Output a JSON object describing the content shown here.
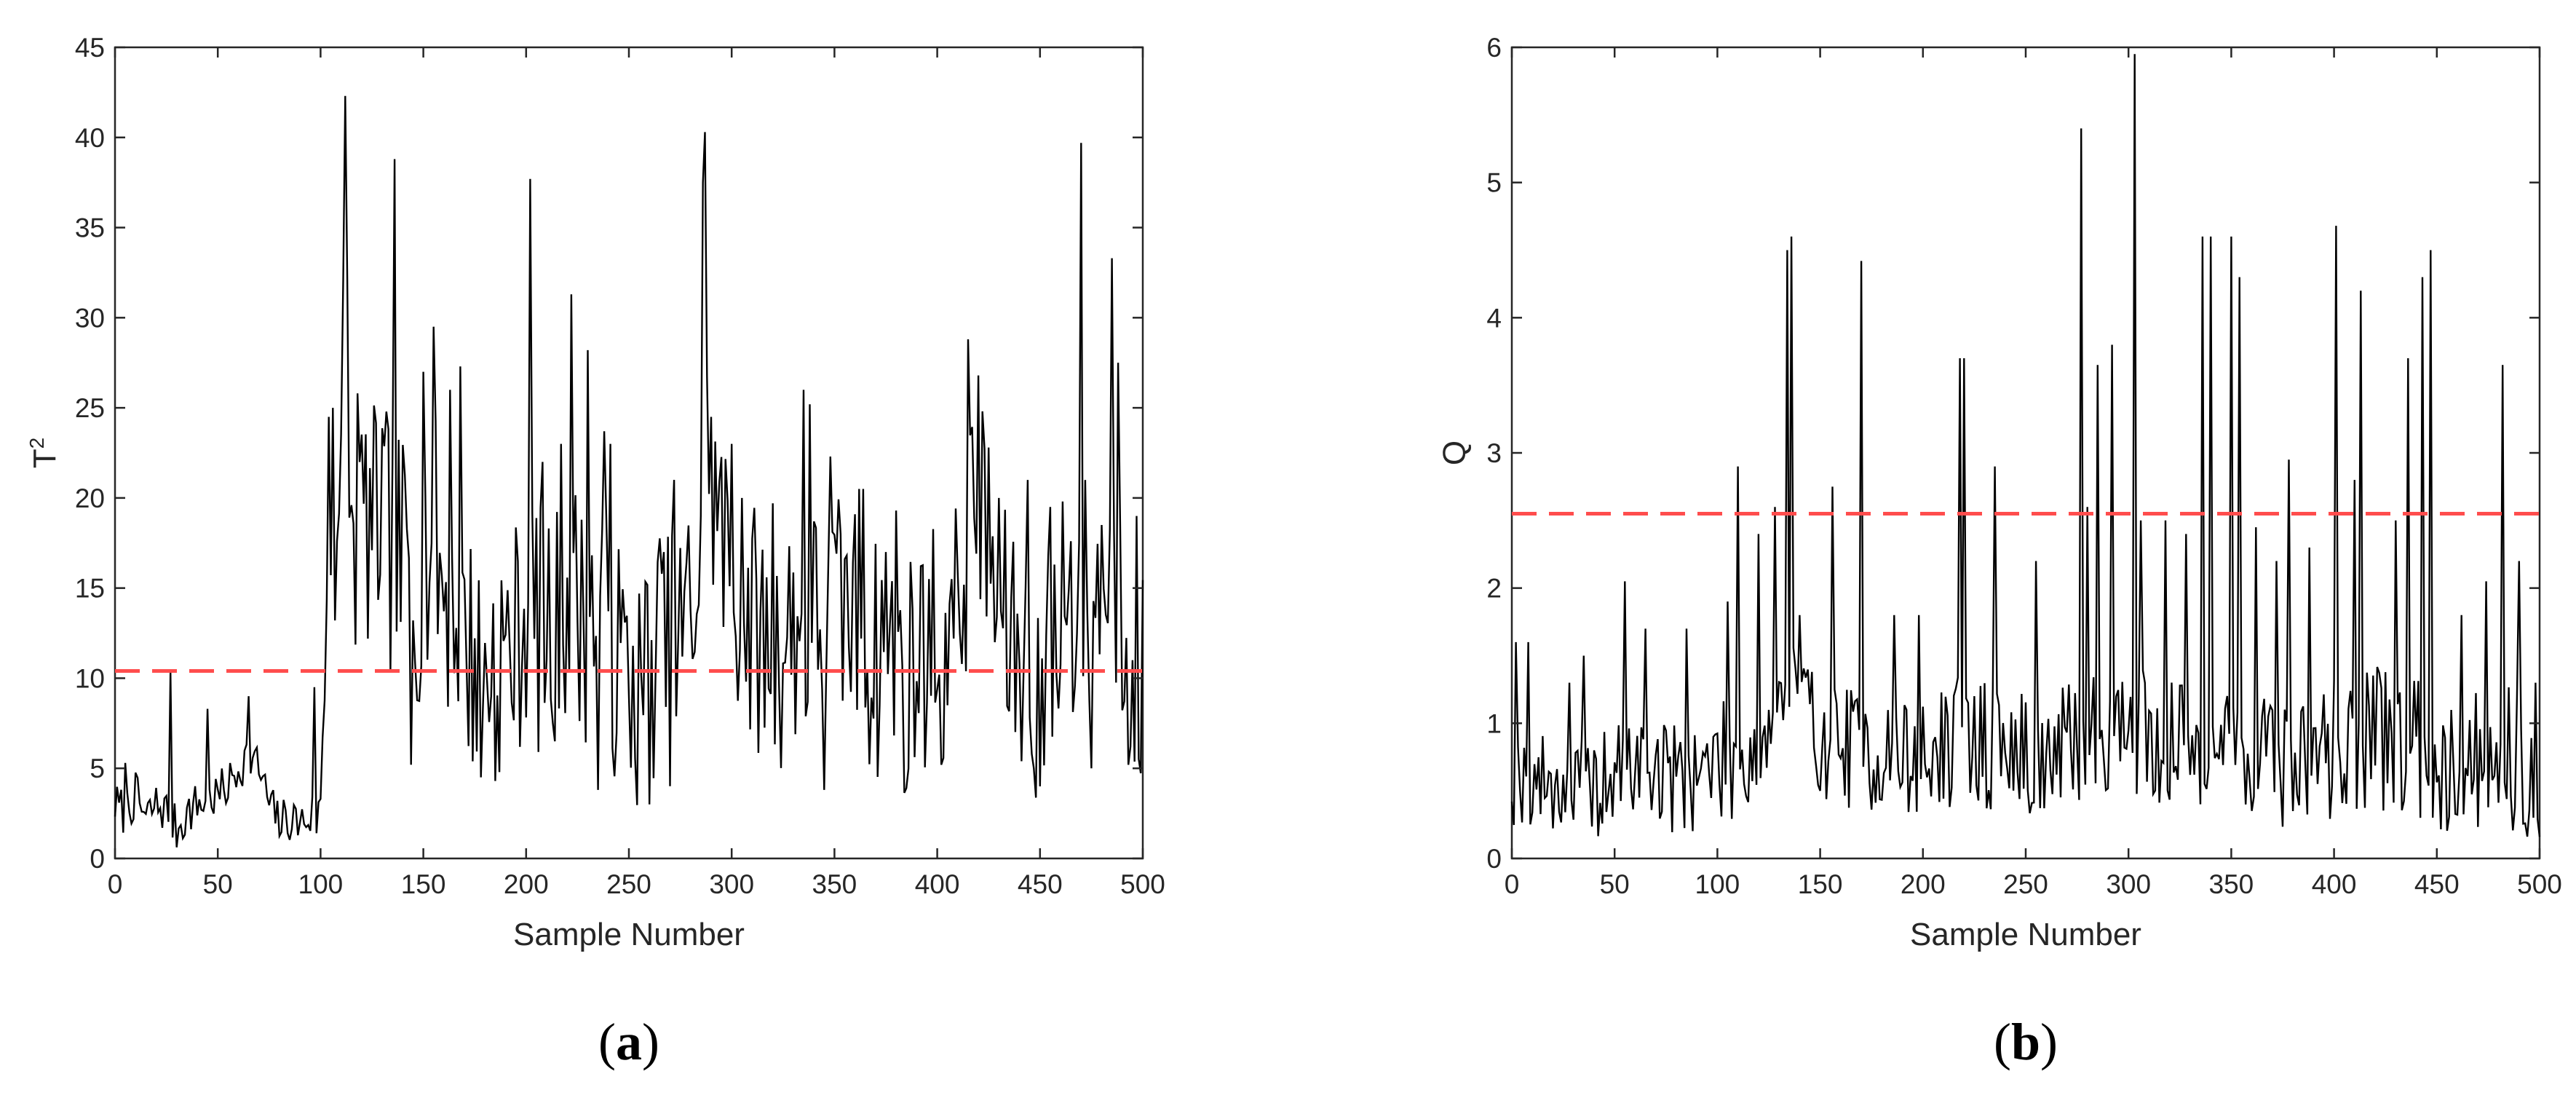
{
  "chart_data": [
    {
      "type": "line",
      "panel_caption": "(a)",
      "caption_parts": [
        "(",
        "a",
        ")"
      ],
      "xlabel": "Sample Number",
      "ylabel": "T",
      "ylabel_sup": "2",
      "xlim": [
        0,
        500
      ],
      "ylim": [
        0,
        45
      ],
      "xticks": [
        0,
        50,
        100,
        150,
        200,
        250,
        300,
        350,
        400,
        450,
        500
      ],
      "yticks": [
        0,
        5,
        10,
        15,
        20,
        25,
        30,
        35,
        40,
        45
      ],
      "grid": false,
      "colors": {
        "series": "#000000",
        "threshold": "#ff4d4d"
      },
      "threshold": {
        "value": 10.4,
        "style": "dashed"
      },
      "series": [
        {
          "anchors": [
            [
              0,
              3
            ],
            [
              5,
              2.5
            ],
            [
              10,
              3.5
            ],
            [
              15,
              2.2
            ],
            [
              20,
              3
            ],
            [
              25,
              2.6
            ],
            [
              30,
              1.6
            ],
            [
              35,
              2.5
            ],
            [
              40,
              3
            ],
            [
              45,
              3.2
            ],
            [
              50,
              3.5
            ],
            [
              55,
              4
            ],
            [
              60,
              5
            ],
            [
              65,
              5.8
            ],
            [
              70,
              5
            ],
            [
              75,
              3
            ],
            [
              80,
              2
            ],
            [
              85,
              2.2
            ],
            [
              90,
              2
            ],
            [
              95,
              2.3
            ],
            [
              100,
              2.5
            ],
            [
              102,
              12
            ],
            [
              105,
              18
            ],
            [
              110,
              20
            ],
            [
              112,
              34
            ],
            [
              115,
              17
            ],
            [
              120,
              19
            ],
            [
              125,
              18
            ],
            [
              130,
              19
            ],
            [
              136,
              16
            ],
            [
              140,
              17
            ],
            [
              145,
              15
            ],
            [
              150,
              16
            ],
            [
              155,
              18
            ],
            [
              160,
              15
            ],
            [
              165,
              14
            ],
            [
              170,
              12
            ],
            [
              175,
              11
            ],
            [
              180,
              10
            ],
            [
              185,
              12
            ],
            [
              190,
              11
            ],
            [
              195,
              12
            ],
            [
              200,
              14
            ],
            [
              205,
              13
            ],
            [
              210,
              12
            ],
            [
              215,
              13
            ],
            [
              220,
              15
            ],
            [
              225,
              14
            ],
            [
              230,
              13
            ],
            [
              235,
              14
            ],
            [
              240,
              12
            ],
            [
              245,
              11
            ],
            [
              250,
              10
            ],
            [
              255,
              9
            ],
            [
              260,
              11
            ],
            [
              265,
              12
            ],
            [
              270,
              11
            ],
            [
              275,
              12
            ],
            [
              280,
              14
            ],
            [
              285,
              16
            ],
            [
              288,
              22
            ],
            [
              292,
              20
            ],
            [
              295,
              18
            ],
            [
              300,
              15
            ],
            [
              305,
              14
            ],
            [
              310,
              13
            ],
            [
              315,
              12
            ],
            [
              320,
              11
            ],
            [
              325,
              12
            ],
            [
              330,
              13
            ],
            [
              335,
              12
            ],
            [
              340,
              13
            ],
            [
              345,
              14
            ],
            [
              350,
              13
            ],
            [
              355,
              14
            ],
            [
              360,
              13
            ],
            [
              365,
              12
            ],
            [
              370,
              11
            ],
            [
              375,
              12
            ],
            [
              380,
              11
            ],
            [
              385,
              10
            ],
            [
              390,
              11
            ],
            [
              395,
              12
            ],
            [
              400,
              12
            ],
            [
              405,
              12
            ],
            [
              410,
              13
            ],
            [
              415,
              18
            ],
            [
              420,
              20
            ],
            [
              425,
              16
            ],
            [
              430,
              13
            ],
            [
              435,
              12
            ],
            [
              440,
              11
            ],
            [
              445,
              10
            ],
            [
              450,
              10
            ],
            [
              455,
              11
            ],
            [
              460,
              12
            ],
            [
              465,
              13
            ],
            [
              470,
              15
            ],
            [
              475,
              14
            ],
            [
              480,
              15
            ],
            [
              485,
              16
            ],
            [
              490,
              14
            ],
            [
              495,
              12
            ],
            [
              500,
              10
            ]
          ],
          "amplitude": [
            [
              0,
              1.3
            ],
            [
              95,
              1.3
            ],
            [
              100,
              2
            ],
            [
              102,
              7
            ],
            [
              500,
              7
            ]
          ],
          "spikes": [
            [
              5,
              5.3
            ],
            [
              27,
              10.4
            ],
            [
              45,
              8.3
            ],
            [
              65,
              9
            ],
            [
              97,
              9.5
            ],
            [
              104,
              24.5
            ],
            [
              106,
              25
            ],
            [
              112,
              42.3
            ],
            [
              118,
              25.8
            ],
            [
              136,
              38.8
            ],
            [
              144,
              5.2
            ],
            [
              150,
              27
            ],
            [
              155,
              29.5
            ],
            [
              163,
              26
            ],
            [
              168,
              27.3
            ],
            [
              178,
              4.5
            ],
            [
              185,
              4.3
            ],
            [
              202,
              37.7
            ],
            [
              208,
              22
            ],
            [
              214,
              6.5
            ],
            [
              217,
              23
            ],
            [
              222,
              31.3
            ],
            [
              230,
              28.2
            ],
            [
              235,
              3.8
            ],
            [
              238,
              23.7
            ],
            [
              241,
              23
            ],
            [
              250,
              9
            ],
            [
              260,
              3
            ],
            [
              267,
              17
            ],
            [
              272,
              21
            ],
            [
              286,
              37.5
            ],
            [
              287,
              40.3
            ],
            [
              290,
              24.5
            ],
            [
              300,
              23
            ],
            [
              305,
              20
            ],
            [
              320,
              19.7
            ],
            [
              335,
              26
            ],
            [
              338,
              25.2
            ],
            [
              345,
              3.8
            ],
            [
              348,
              22.3
            ],
            [
              353,
              18
            ],
            [
              362,
              20.5
            ],
            [
              364,
              20.5
            ],
            [
              375,
              17
            ],
            [
              380,
              19.3
            ],
            [
              385,
              3.9
            ],
            [
              396,
              15.5
            ],
            [
              402,
              5.2
            ],
            [
              405,
              8.5
            ],
            [
              407,
              15.5
            ],
            [
              410,
              15.8
            ],
            [
              415,
              28.8
            ],
            [
              420,
              26.8
            ],
            [
              425,
              22.8
            ],
            [
              430,
              20
            ],
            [
              444,
              21
            ],
            [
              447,
              5
            ],
            [
              450,
              4
            ],
            [
              455,
              19.5
            ],
            [
              461,
              19.8
            ],
            [
              465,
              17.6
            ],
            [
              470,
              39.7
            ],
            [
              475,
              5
            ],
            [
              480,
              18.5
            ],
            [
              485,
              33.3
            ],
            [
              488,
              27.5
            ],
            [
              493,
              5.2
            ],
            [
              495,
              11
            ],
            [
              497,
              19
            ]
          ],
          "seed": 7
        }
      ]
    },
    {
      "type": "line",
      "panel_caption": "(b)",
      "caption_parts": [
        "(",
        "b",
        ")"
      ],
      "xlabel": "Sample Number",
      "ylabel": "Q",
      "xlim": [
        0,
        500
      ],
      "ylim": [
        0,
        6
      ],
      "xticks": [
        0,
        50,
        100,
        150,
        200,
        250,
        300,
        350,
        400,
        450,
        500
      ],
      "yticks": [
        0,
        1,
        2,
        3,
        4,
        5,
        6
      ],
      "grid": false,
      "colors": {
        "series": "#000000",
        "threshold": "#ff4d4d"
      },
      "threshold": {
        "value": 2.55,
        "style": "dashed"
      },
      "series": [
        {
          "anchors": [
            [
              0,
              0.6
            ],
            [
              20,
              0.55
            ],
            [
              40,
              0.5
            ],
            [
              60,
              0.7
            ],
            [
              80,
              0.6
            ],
            [
              100,
              0.7
            ],
            [
              120,
              0.8
            ],
            [
              135,
              1.3
            ],
            [
              150,
              0.9
            ],
            [
              170,
              0.8
            ],
            [
              200,
              0.7
            ],
            [
              220,
              0.9
            ],
            [
              240,
              0.8
            ],
            [
              260,
              0.7
            ],
            [
              280,
              0.9
            ],
            [
              300,
              1
            ],
            [
              320,
              0.8
            ],
            [
              340,
              0.9
            ],
            [
              360,
              0.8
            ],
            [
              380,
              0.7
            ],
            [
              400,
              0.8
            ],
            [
              420,
              0.9
            ],
            [
              440,
              0.8
            ],
            [
              460,
              0.7
            ],
            [
              480,
              0.8
            ],
            [
              500,
              0.6
            ]
          ],
          "amplitude": [
            [
              0,
              0.35
            ],
            [
              100,
              0.45
            ],
            [
              500,
              0.55
            ]
          ],
          "spikes": [
            [
              2,
              1.6
            ],
            [
              8,
              1.6
            ],
            [
              28,
              1.3
            ],
            [
              35,
              1.5
            ],
            [
              55,
              2.05
            ],
            [
              65,
              1.7
            ],
            [
              85,
              1.7
            ],
            [
              105,
              1.9
            ],
            [
              110,
              2.9
            ],
            [
              120,
              2.4
            ],
            [
              128,
              2.6
            ],
            [
              134,
              4.5
            ],
            [
              136,
              4.6
            ],
            [
              140,
              1.8
            ],
            [
              156,
              2.75
            ],
            [
              170,
              4.42
            ],
            [
              186,
              1.8
            ],
            [
              198,
              1.8
            ],
            [
              218,
              3.7
            ],
            [
              220,
              3.7
            ],
            [
              235,
              2.9
            ],
            [
              255,
              2.2
            ],
            [
              277,
              5.4
            ],
            [
              280,
              2.6
            ],
            [
              285,
              3.65
            ],
            [
              292,
              3.8
            ],
            [
              303,
              5.95
            ],
            [
              306,
              2.5
            ],
            [
              318,
              2.5
            ],
            [
              328,
              2.4
            ],
            [
              336,
              4.6
            ],
            [
              340,
              4.6
            ],
            [
              350,
              4.6
            ],
            [
              354,
              4.3
            ],
            [
              362,
              2.45
            ],
            [
              372,
              2.2
            ],
            [
              378,
              2.95
            ],
            [
              388,
              2.3
            ],
            [
              401,
              4.68
            ],
            [
              410,
              2.8
            ],
            [
              413,
              4.2
            ],
            [
              430,
              2.5
            ],
            [
              436,
              3.7
            ],
            [
              443,
              4.3
            ],
            [
              447,
              4.5
            ],
            [
              462,
              1.8
            ],
            [
              474,
              2.05
            ],
            [
              482,
              3.65
            ],
            [
              490,
              2.2
            ],
            [
              498,
              1.3
            ]
          ],
          "seed": 19
        }
      ]
    }
  ]
}
